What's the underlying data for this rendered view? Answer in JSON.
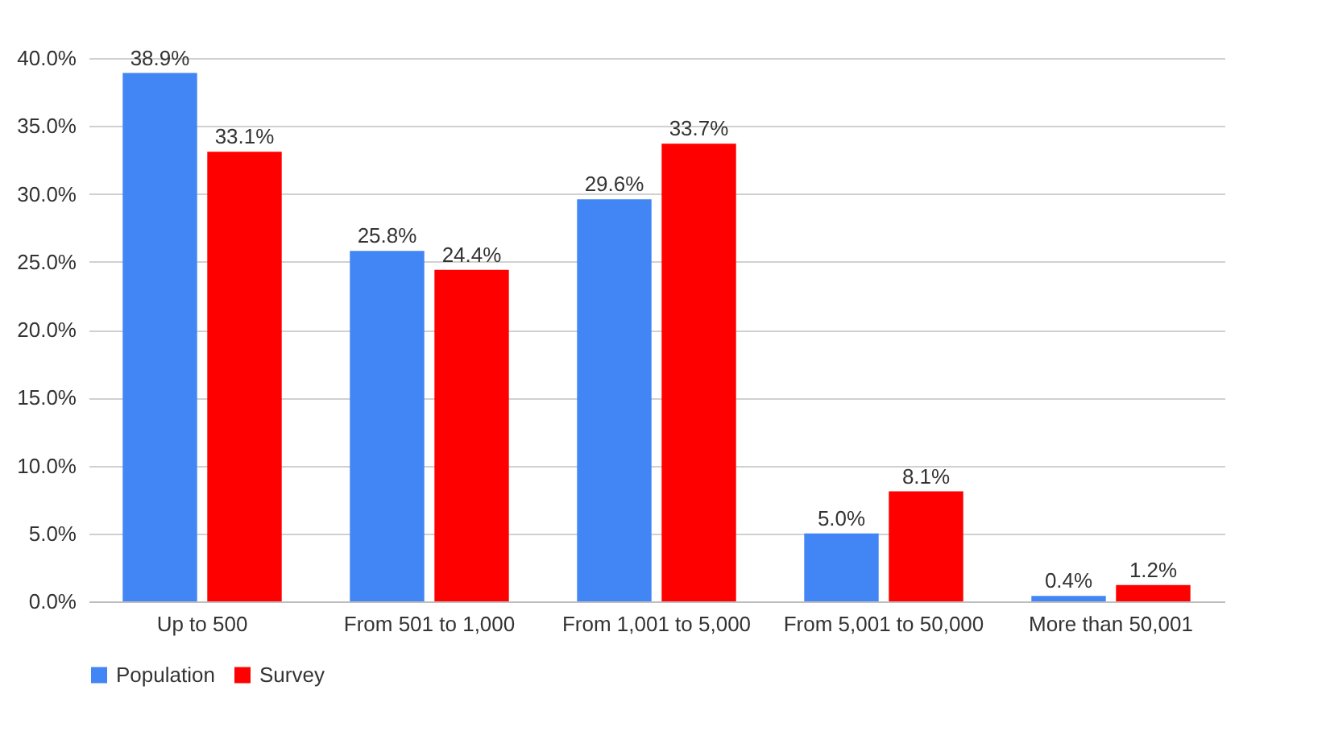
{
  "chart_data": {
    "type": "bar",
    "categories": [
      "Up to 500",
      "From 501 to 1,000",
      "From 1,001 to 5,000",
      "From 5,001 to 50,000",
      "More than 50,001"
    ],
    "series": [
      {
        "name": "Population",
        "color": "#4285f4",
        "values": [
          38.9,
          25.8,
          29.6,
          5.0,
          0.4
        ],
        "value_labels": [
          "38.9%",
          "25.8%",
          "29.6%",
          "5.0%",
          "0.4%"
        ]
      },
      {
        "name": "Survey",
        "color": "#ff0000",
        "values": [
          33.1,
          24.4,
          33.7,
          8.1,
          1.2
        ],
        "value_labels": [
          "33.1%",
          "24.4%",
          "33.7%",
          "8.1%",
          "1.2%"
        ]
      }
    ],
    "ylim": [
      0,
      40
    ],
    "yticks": [
      {
        "value": 0,
        "label": "0.0%"
      },
      {
        "value": 5,
        "label": "5.0%"
      },
      {
        "value": 10,
        "label": "10.0%"
      },
      {
        "value": 15,
        "label": "15.0%"
      },
      {
        "value": 20,
        "label": "20.0%"
      },
      {
        "value": 25,
        "label": "25.0%"
      },
      {
        "value": 30,
        "label": "30.0%"
      },
      {
        "value": 35,
        "label": "35.0%"
      },
      {
        "value": 40,
        "label": "40.0%"
      }
    ],
    "grid": "y",
    "legend": "bottom"
  }
}
